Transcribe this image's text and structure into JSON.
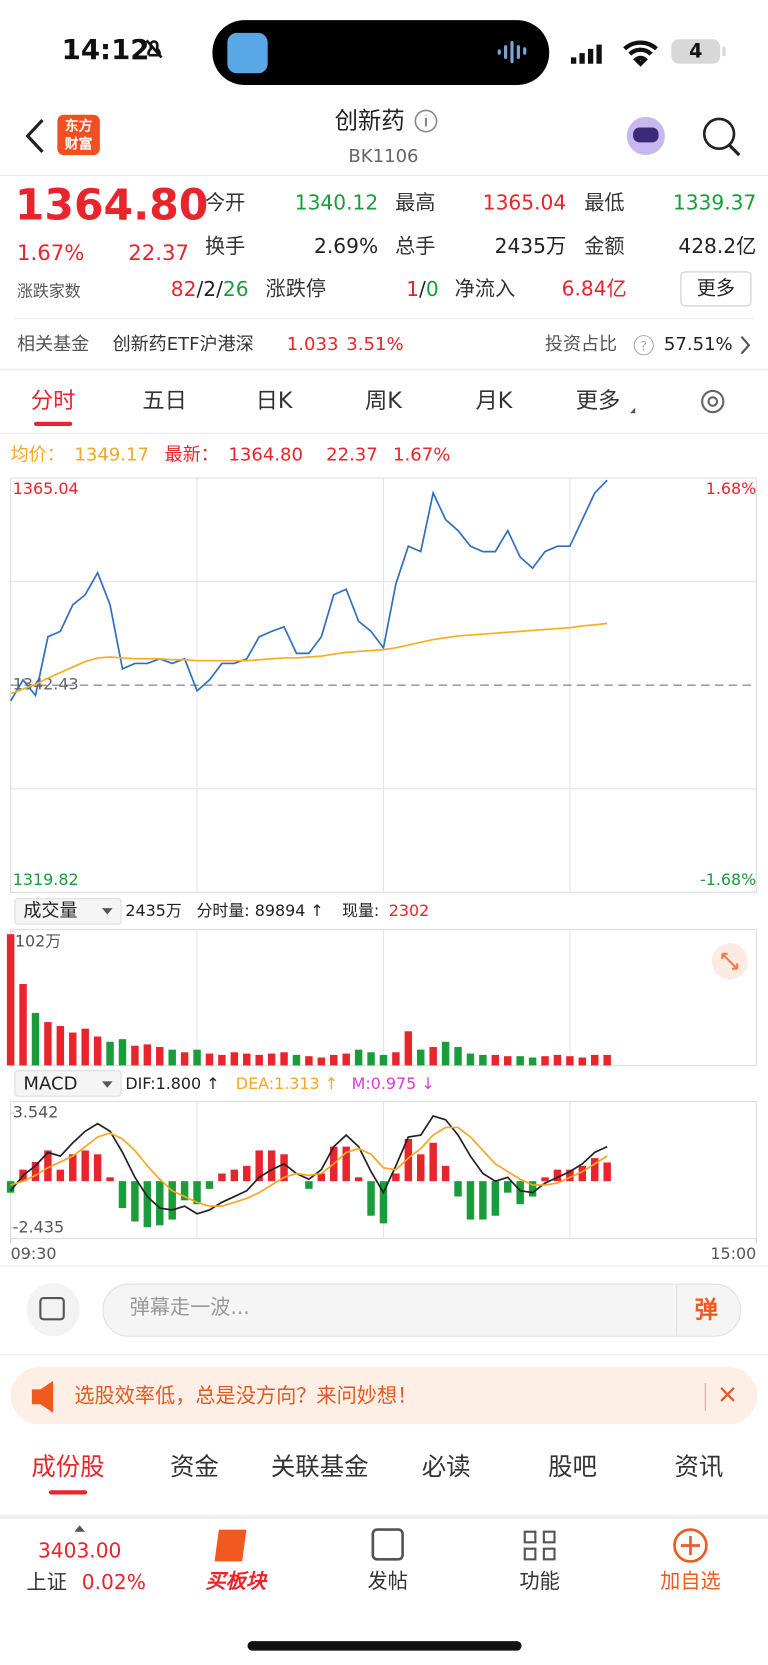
{
  "status": {
    "time": "14:12",
    "battery": "4"
  },
  "header": {
    "logo": [
      "东方",
      "财富"
    ],
    "title": "创新药",
    "code": "BK1106"
  },
  "quote": {
    "price": "1364.80",
    "change_pct": "1.67%",
    "change": "22.37",
    "fields": [
      {
        "label": "今开",
        "value": "1340.12",
        "color": "#1a9c3a"
      },
      {
        "label": "最高",
        "value": "1365.04",
        "color": "#e8242c"
      },
      {
        "label": "最低",
        "value": "1339.37",
        "color": "#1a9c3a"
      },
      {
        "label": "换手",
        "value": "2.69%",
        "color": "#222222"
      },
      {
        "label": "总手",
        "value": "2435万",
        "color": "#222222"
      },
      {
        "label": "金额",
        "value": "428.2亿",
        "color": "#222222"
      }
    ],
    "breadth_label": "涨跌家数",
    "breadth": [
      {
        "text": "82",
        "color": "#e8242c"
      },
      {
        "text": "/",
        "color": "#222222"
      },
      {
        "text": "2",
        "color": "#222222"
      },
      {
        "text": "/",
        "color": "#222222"
      },
      {
        "text": "26",
        "color": "#1a9c3a"
      }
    ],
    "limit_label": "涨跌停",
    "limit": [
      {
        "text": "1",
        "color": "#e8242c"
      },
      {
        "text": "/",
        "color": "#222222"
      },
      {
        "text": "0",
        "color": "#1a9c3a"
      }
    ],
    "flow_label": "净流入",
    "flow": "6.84亿",
    "more": "更多"
  },
  "fund": {
    "label": "相关基金",
    "name": "创新药ETF沪港深",
    "price": "1.033",
    "pct": "3.51%",
    "ratio_label": "投资占比",
    "help": "?",
    "ratio": "57.51%"
  },
  "tabs": {
    "items": [
      "分时",
      "五日",
      "日K",
      "周K",
      "月K",
      "更多"
    ],
    "active": 0
  },
  "legend": {
    "avg_label": "均价：",
    "avg": "1349.17",
    "last_label": "最新：",
    "last": "1364.80",
    "change": "22.37",
    "pct": "1.67%"
  },
  "volume_header": {
    "selector": "成交量",
    "total": "2435万",
    "minute": "分时量: 89894 ↑",
    "now_label": "现量:",
    "now": "2302"
  },
  "macd_header": {
    "selector": "MACD",
    "dif": "DIF:1.800 ↑",
    "dea": "DEA:1.313 ↑",
    "m": "M:0.975 ↓"
  },
  "chart_data": [
    {
      "type": "line",
      "xlim": [
        0,
        240
      ],
      "ylim": [
        1319.82,
        1365.04
      ],
      "yticks": [
        1319.82,
        1342.43,
        1365.04
      ],
      "y2lim": [
        -1.68,
        1.68
      ],
      "y2ticks": [
        {
          "value": -1.68,
          "label": "-1.68%"
        },
        {
          "value": 1.68,
          "label": "1.68%"
        }
      ],
      "x": [
        0,
        4,
        8,
        12,
        16,
        20,
        24,
        28,
        32,
        36,
        40,
        44,
        48,
        52,
        56,
        60,
        64,
        68,
        72,
        76,
        80,
        84,
        88,
        92,
        96,
        100,
        104,
        108,
        112,
        116,
        120,
        124,
        128,
        132,
        136,
        140,
        144,
        148,
        152,
        156,
        160,
        164,
        168,
        172,
        176,
        180,
        184,
        188,
        192
      ],
      "series": [
        {
          "name": "最新",
          "color": "#2f6fbf",
          "values": [
            1340.7,
            1343.0,
            1341.3,
            1347.7,
            1348.3,
            1351.2,
            1352.3,
            1354.7,
            1351.2,
            1344.2,
            1344.8,
            1344.8,
            1345.3,
            1344.8,
            1345.3,
            1341.8,
            1343.0,
            1344.8,
            1344.8,
            1345.3,
            1347.7,
            1348.3,
            1348.8,
            1345.9,
            1345.9,
            1347.7,
            1352.3,
            1352.9,
            1349.4,
            1348.3,
            1346.5,
            1353.5,
            1357.6,
            1357.0,
            1363.4,
            1360.5,
            1359.3,
            1357.6,
            1357.0,
            1357.0,
            1359.3,
            1356.4,
            1355.2,
            1357.0,
            1357.6,
            1357.6,
            1360.5,
            1363.4,
            1364.8
          ]
        },
        {
          "name": "均价",
          "color": "#f5b021",
          "values": [
            1341.5,
            1342.0,
            1342.5,
            1343.2,
            1343.8,
            1344.4,
            1345.0,
            1345.4,
            1345.5,
            1345.4,
            1345.3,
            1345.3,
            1345.3,
            1345.2,
            1345.2,
            1345.1,
            1345.1,
            1345.1,
            1345.1,
            1345.1,
            1345.2,
            1345.3,
            1345.4,
            1345.4,
            1345.5,
            1345.6,
            1345.8,
            1346.0,
            1346.1,
            1346.2,
            1346.3,
            1346.5,
            1346.8,
            1347.1,
            1347.4,
            1347.6,
            1347.8,
            1347.9,
            1348.0,
            1348.1,
            1348.2,
            1348.3,
            1348.4,
            1348.5,
            1348.6,
            1348.7,
            1348.9,
            1349.0,
            1349.17
          ]
        }
      ]
    },
    {
      "type": "bar",
      "xlim": [
        0,
        240
      ],
      "ylim": [
        0,
        102
      ],
      "yticks": [
        {
          "value": 102,
          "label": "102万"
        }
      ],
      "up_color": "#e8242c",
      "down_color": "#1a9c3a",
      "x": [
        0,
        4,
        8,
        12,
        16,
        20,
        24,
        28,
        32,
        36,
        40,
        44,
        48,
        52,
        56,
        60,
        64,
        68,
        72,
        76,
        80,
        84,
        88,
        92,
        96,
        100,
        104,
        108,
        112,
        116,
        120,
        124,
        128,
        132,
        136,
        140,
        144,
        148,
        152,
        156,
        160,
        164,
        168,
        172,
        176,
        180,
        184,
        188,
        192
      ],
      "values": [
        100,
        62,
        40,
        33,
        30,
        25,
        28,
        22,
        18,
        20,
        15,
        16,
        14,
        12,
        10,
        12,
        9,
        8,
        10,
        9,
        8,
        9,
        10,
        8,
        7,
        6,
        8,
        9,
        12,
        10,
        8,
        10,
        26,
        12,
        14,
        18,
        14,
        9,
        8,
        8,
        7,
        7,
        6,
        7,
        8,
        7,
        6,
        8,
        8
      ]
    },
    {
      "type": "combo",
      "xlim": [
        0,
        240
      ],
      "ylim": [
        -2.435,
        3.542
      ],
      "yticks": [
        -2.435,
        3.542
      ],
      "xticks": [
        {
          "value": 0,
          "label": "09:30"
        },
        {
          "value": 240,
          "label": "15:00"
        }
      ],
      "x": [
        0,
        4,
        8,
        12,
        16,
        20,
        24,
        28,
        32,
        36,
        40,
        44,
        48,
        52,
        56,
        60,
        64,
        68,
        72,
        76,
        80,
        84,
        88,
        92,
        96,
        100,
        104,
        108,
        112,
        116,
        120,
        124,
        128,
        132,
        136,
        140,
        144,
        148,
        152,
        156,
        160,
        164,
        168,
        172,
        176,
        180,
        184,
        188,
        192
      ],
      "series": [
        {
          "name": "M",
          "type": "bar",
          "up_color": "#e8242c",
          "down_color": "#1a9c3a",
          "values": [
            -0.6,
            0.6,
            1.0,
            1.6,
            0.6,
            1.4,
            1.6,
            1.4,
            0.2,
            -1.4,
            -2.1,
            -2.4,
            -2.3,
            -2.0,
            -1.0,
            -1.2,
            -0.4,
            0.4,
            0.6,
            0.8,
            1.6,
            1.6,
            1.4,
            0.0,
            -0.4,
            0.4,
            1.8,
            1.8,
            0.2,
            -1.8,
            -2.2,
            0.4,
            2.2,
            1.4,
            2.0,
            0.8,
            -0.8,
            -2.0,
            -2.0,
            -1.8,
            -0.6,
            -1.2,
            -0.8,
            0.2,
            0.6,
            0.6,
            0.8,
            1.2,
            0.975
          ]
        },
        {
          "name": "DIF",
          "type": "line",
          "color": "#222222",
          "values": [
            -0.5,
            0.3,
            0.8,
            1.5,
            1.3,
            2.0,
            2.6,
            3.0,
            2.6,
            1.5,
            0.2,
            -0.8,
            -1.4,
            -1.5,
            -1.3,
            -1.7,
            -1.5,
            -1.1,
            -0.8,
            -0.5,
            0.2,
            0.6,
            0.9,
            0.4,
            0.1,
            0.6,
            1.8,
            2.4,
            1.8,
            0.5,
            -0.6,
            0.8,
            2.3,
            2.4,
            3.4,
            3.2,
            2.4,
            1.3,
            0.4,
            0.0,
            0.2,
            -0.5,
            -0.6,
            -0.1,
            0.2,
            0.5,
            0.9,
            1.5,
            1.8
          ]
        },
        {
          "name": "DEA",
          "type": "line",
          "color": "#f5a623",
          "values": [
            -0.2,
            0,
            0.3,
            0.7,
            1.0,
            1.3,
            1.8,
            2.3,
            2.5,
            2.2,
            1.6,
            0.8,
            0.1,
            -0.5,
            -0.8,
            -1.1,
            -1.3,
            -1.3,
            -1.1,
            -0.9,
            -0.6,
            -0.2,
            0.2,
            0.4,
            0.3,
            0.4,
            0.9,
            1.5,
            1.7,
            1.4,
            0.7,
            0.6,
            1.2,
            1.7,
            2.4,
            2.8,
            2.8,
            2.3,
            1.6,
            0.9,
            0.5,
            0.1,
            -0.2,
            -0.2,
            -0.1,
            0.2,
            0.5,
            0.9,
            1.313
          ]
        }
      ]
    }
  ],
  "comment": {
    "placeholder": "弹幕走一波...",
    "button": "弹"
  },
  "banner": {
    "text": "选股效率低，总是没方向？来问妙想！",
    "close": "×"
  },
  "sub_tabs": {
    "items": [
      "成份股",
      "资金",
      "关联基金",
      "必读",
      "股吧",
      "资讯"
    ],
    "active": 0
  },
  "nav": {
    "index_value": "3403.00",
    "index_name": "上证",
    "index_pct": "0.02%",
    "items": [
      "买板块",
      "发帖",
      "功能",
      "加自选"
    ]
  }
}
